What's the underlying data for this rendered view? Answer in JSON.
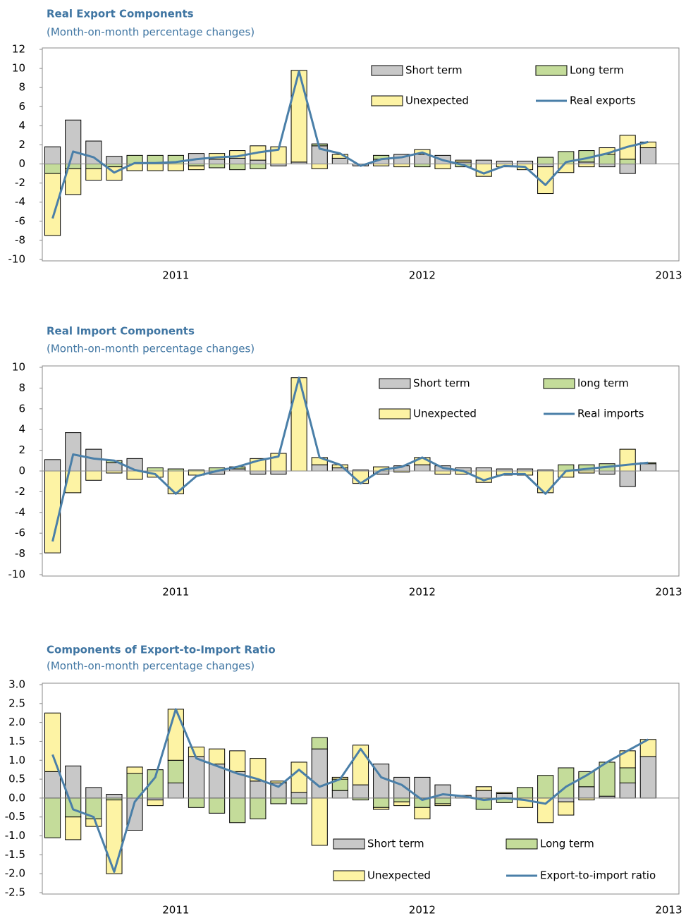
{
  "chart_data": [
    {
      "type": "bar",
      "stacked": true,
      "title": "Real Export Components",
      "subtitle": "(Month-on-month percentage changes)",
      "categories": [
        null,
        null,
        null,
        null,
        null,
        null,
        "2011",
        null,
        null,
        null,
        null,
        null,
        null,
        null,
        null,
        null,
        null,
        null,
        "2012",
        null,
        null,
        null,
        null,
        null,
        null,
        null,
        null,
        null,
        null,
        null,
        "2013"
      ],
      "series": [
        {
          "name": "Short term",
          "color": "#c8c8c8",
          "values": [
            1.8,
            4.6,
            2.4,
            0.8,
            0,
            0,
            0,
            1.1,
            0.5,
            0.6,
            0.4,
            -0.2,
            0.2,
            1.9,
            0.6,
            -0.2,
            0.5,
            1.0,
            1.0,
            0.9,
            0.2,
            0.4,
            0.3,
            0.3,
            -0.3,
            0,
            0.2,
            -0.3,
            -1.0,
            1.7,
            null
          ]
        },
        {
          "name": "Long term",
          "color": "#c4dc9a",
          "values": [
            -1.0,
            -0.5,
            -0.5,
            -0.3,
            0.9,
            0.9,
            0.9,
            -0.2,
            -0.4,
            -0.6,
            -0.5,
            0,
            0,
            0.2,
            0,
            0,
            0.4,
            0,
            -0.3,
            0,
            -0.3,
            0,
            0,
            0,
            0.7,
            1.3,
            1.2,
            1.0,
            0.5,
            0,
            null
          ]
        },
        {
          "name": "Unexpected",
          "color": "#fdf3a4",
          "values": [
            -6.5,
            -2.7,
            -1.2,
            -1.4,
            -0.7,
            -0.7,
            -0.7,
            -0.4,
            0.6,
            0.8,
            1.5,
            1.8,
            9.6,
            -0.5,
            0.4,
            0,
            -0.2,
            -0.3,
            0.5,
            -0.5,
            0.2,
            -1.3,
            -0.3,
            -0.6,
            -2.8,
            -0.9,
            -0.3,
            0.7,
            2.5,
            0.6,
            null
          ]
        },
        {
          "name": "Real exports",
          "color": "#4a7fa8",
          "type": "line",
          "values": [
            -5.7,
            1.3,
            0.7,
            -0.9,
            0.1,
            0.1,
            0.2,
            0.5,
            0.7,
            0.8,
            1.2,
            1.5,
            9.7,
            1.6,
            1.1,
            -0.2,
            0.5,
            0.7,
            1.2,
            0.4,
            -0.1,
            -1.0,
            -0.2,
            -0.3,
            -2.2,
            0.2,
            0.6,
            1.1,
            1.8,
            2.3,
            null
          ]
        }
      ],
      "ylim": [
        -10,
        12
      ],
      "yticks": [
        -10,
        -8,
        -6,
        -4,
        -2,
        0,
        2,
        4,
        6,
        8,
        10,
        12
      ]
    },
    {
      "type": "bar",
      "stacked": true,
      "title": "Real Import Components",
      "subtitle": "(Month-on-month percentage changes)",
      "categories": [
        null,
        null,
        null,
        null,
        null,
        null,
        "2011",
        null,
        null,
        null,
        null,
        null,
        null,
        null,
        null,
        null,
        null,
        null,
        "2012",
        null,
        null,
        null,
        null,
        null,
        null,
        null,
        null,
        null,
        null,
        null,
        "2013"
      ],
      "series": [
        {
          "name": "Short term",
          "color": "#c8c8c8",
          "values": [
            1.1,
            3.7,
            2.1,
            0.8,
            1.2,
            0,
            0,
            0,
            -0.3,
            0.2,
            -0.3,
            -0.3,
            0,
            0.6,
            0.3,
            0.1,
            -0.3,
            0.5,
            0.6,
            0.5,
            0.3,
            0.3,
            0.2,
            0.2,
            0.1,
            0,
            0,
            -0.3,
            -1.5,
            0.7,
            null
          ]
        },
        {
          "name": "long term",
          "color": "#c4dc9a",
          "values": [
            0,
            0,
            0,
            0.2,
            0,
            0.3,
            0.2,
            0.1,
            0.3,
            0.2,
            0,
            0,
            0,
            0,
            0,
            0,
            0,
            0,
            0,
            0,
            0,
            0,
            0,
            0,
            0,
            0.6,
            0.6,
            0.7,
            0,
            0.1,
            null
          ]
        },
        {
          "name": "Unexpected",
          "color": "#fdf3a4",
          "values": [
            -7.9,
            -2.1,
            -0.9,
            -0.2,
            -0.8,
            -0.6,
            -2.2,
            -0.4,
            0,
            0,
            1.2,
            1.7,
            9.0,
            0.7,
            0.3,
            -1.2,
            0.4,
            -0.1,
            0.7,
            -0.3,
            -0.3,
            -1.1,
            -0.4,
            -0.4,
            -2.1,
            -0.6,
            -0.2,
            0,
            2.1,
            0,
            null
          ]
        },
        {
          "name": "Real imports",
          "color": "#4a7fa8",
          "type": "line",
          "values": [
            -6.8,
            1.6,
            1.2,
            1.0,
            0.1,
            -0.3,
            -2.2,
            -0.5,
            0,
            0.4,
            1.0,
            1.4,
            9.0,
            1.3,
            0.6,
            -1.2,
            0.1,
            0.4,
            1.3,
            0.3,
            0,
            -0.9,
            -0.3,
            -0.3,
            -2.2,
            0,
            0.2,
            0.4,
            0.6,
            0.8,
            null
          ]
        }
      ],
      "ylim": [
        -10,
        10
      ],
      "yticks": [
        -10,
        -8,
        -6,
        -4,
        -2,
        0,
        2,
        4,
        6,
        8,
        10
      ]
    },
    {
      "type": "bar",
      "stacked": true,
      "title": "Components of Export-to-Import Ratio",
      "subtitle": "(Month-on-month percentage changes)",
      "categories": [
        null,
        null,
        null,
        null,
        null,
        null,
        "2011",
        null,
        null,
        null,
        null,
        null,
        null,
        null,
        null,
        null,
        null,
        null,
        "2012",
        null,
        null,
        null,
        null,
        null,
        null,
        null,
        null,
        null,
        null,
        null,
        "2013"
      ],
      "series": [
        {
          "name": "Short term",
          "color": "#c8c8c8",
          "values": [
            0.7,
            0.85,
            0.28,
            0.1,
            -0.85,
            -0.05,
            0.4,
            1.1,
            0.9,
            0.7,
            0.45,
            0.4,
            0.15,
            1.3,
            0.2,
            0.35,
            0.9,
            0.55,
            0.55,
            0.35,
            0.07,
            0.2,
            0.12,
            0,
            0,
            -0.1,
            0.3,
            0.05,
            0.4,
            1.1,
            null
          ]
        },
        {
          "name": "Long term",
          "color": "#c4dc9a",
          "values": [
            -1.05,
            -0.5,
            -0.55,
            -0.05,
            0.65,
            0.75,
            0.6,
            -0.25,
            -0.4,
            -0.65,
            -0.55,
            -0.15,
            -0.15,
            0.3,
            0.3,
            -0.05,
            -0.25,
            -0.1,
            -0.25,
            -0.15,
            0,
            -0.3,
            -0.12,
            0.28,
            0.6,
            0.8,
            0.4,
            0.9,
            0.4,
            0,
            null
          ]
        },
        {
          "name": "Unexpected",
          "color": "#fdf3a4",
          "values": [
            1.55,
            -0.6,
            -0.2,
            -1.95,
            0.17,
            -0.15,
            1.35,
            0.25,
            0.4,
            0.55,
            0.6,
            0.05,
            0.8,
            -1.25,
            0.05,
            1.05,
            -0.05,
            -0.1,
            -0.3,
            -0.05,
            0,
            0.1,
            0.03,
            -0.25,
            -0.65,
            -0.35,
            -0.05,
            0,
            0.45,
            0.45,
            null
          ]
        },
        {
          "name": "Export-to-import ratio",
          "color": "#4a7fa8",
          "type": "line",
          "values": [
            1.15,
            -0.3,
            -0.5,
            -1.95,
            -0.1,
            0.55,
            2.35,
            1.05,
            0.85,
            0.65,
            0.5,
            0.3,
            0.75,
            0.3,
            0.5,
            1.3,
            0.55,
            0.35,
            -0.05,
            0.1,
            0.05,
            -0.05,
            0,
            -0.05,
            -0.15,
            0.3,
            0.6,
            0.95,
            1.25,
            1.55,
            null
          ]
        }
      ],
      "ylim": [
        -2.5,
        3
      ],
      "yticks": [
        -2.5,
        {
          "value": -2,
          "label": "-2.0"
        },
        -1.5,
        {
          "value": -1,
          "label": "-1.0"
        },
        -0.5,
        {
          "value": 0,
          "label": "0.0"
        },
        0.5,
        {
          "value": 1,
          "label": "1.0"
        },
        1.5,
        {
          "value": 2,
          "label": "2.0"
        },
        2.5,
        {
          "value": 3,
          "label": "3.0"
        }
      ]
    }
  ]
}
